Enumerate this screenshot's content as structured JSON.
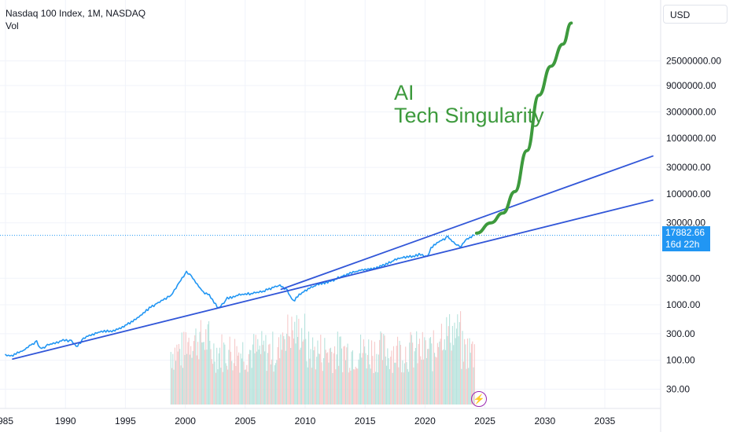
{
  "header": {
    "symbol_line": "Nasdaq 100 Index, 1M, NASDAQ",
    "indicator": "Vol"
  },
  "currency_button": "USD",
  "annotation": {
    "line1": "AI",
    "line2": "Tech Singularity"
  },
  "last_price": {
    "value": "17882.66",
    "countdown": "16d 22h"
  },
  "colors": {
    "price_line": "#2196f3",
    "trend_line": "#3156d8",
    "projection": "#3d9a3d",
    "vol_up": "#b7e3dd",
    "vol_down": "#f6c9c9",
    "tag": "#2196f3",
    "event_icon": "#9c27b0"
  },
  "chart_data": {
    "type": "line",
    "scale": "log",
    "y_ticks": [
      "25000000.00",
      "9000000.00",
      "3000000.00",
      "1000000.00",
      "300000.00",
      "100000.00",
      "30000.00",
      "3000.00",
      "1000.00",
      "300.00",
      "100.00",
      "30.00"
    ],
    "x_ticks": [
      "985",
      "1990",
      "1995",
      "2000",
      "2005",
      "2010",
      "2015",
      "2020",
      "2025",
      "2030",
      "2035"
    ],
    "xlim": [
      1985,
      2039
    ],
    "grid": true,
    "series": [
      {
        "points": [
          [
            1985.0,
            125
          ],
          [
            1985.5,
            120
          ],
          [
            1986.0,
            135
          ],
          [
            1986.5,
            150
          ],
          [
            1987.0,
            180
          ],
          [
            1987.6,
            220
          ],
          [
            1987.9,
            160
          ],
          [
            1988.5,
            185
          ],
          [
            1989.0,
            200
          ],
          [
            1989.8,
            230
          ],
          [
            1990.5,
            220
          ],
          [
            1990.9,
            175
          ],
          [
            1991.5,
            240
          ],
          [
            1992.0,
            280
          ],
          [
            1993.0,
            330
          ],
          [
            1994.0,
            340
          ],
          [
            1995.0,
            420
          ],
          [
            1996.0,
            580
          ],
          [
            1997.0,
            860
          ],
          [
            1998.0,
            1200
          ],
          [
            1998.8,
            1450
          ],
          [
            1999.5,
            2500
          ],
          [
            2000.1,
            3900
          ],
          [
            2000.5,
            3300
          ],
          [
            2001.0,
            2300
          ],
          [
            2001.5,
            1700
          ],
          [
            2002.0,
            1500
          ],
          [
            2002.8,
            850
          ],
          [
            2003.5,
            1300
          ],
          [
            2004.5,
            1500
          ],
          [
            2005.5,
            1600
          ],
          [
            2006.5,
            1750
          ],
          [
            2007.5,
            2100
          ],
          [
            2007.9,
            2200
          ],
          [
            2008.5,
            1800
          ],
          [
            2009.0,
            1150
          ],
          [
            2009.5,
            1500
          ],
          [
            2010.0,
            1800
          ],
          [
            2011.0,
            2300
          ],
          [
            2012.0,
            2600
          ],
          [
            2013.0,
            3200
          ],
          [
            2014.0,
            3800
          ],
          [
            2015.0,
            4400
          ],
          [
            2016.0,
            4600
          ],
          [
            2017.0,
            5800
          ],
          [
            2018.0,
            7000
          ],
          [
            2019.0,
            7500
          ],
          [
            2019.5,
            8000
          ],
          [
            2020.2,
            7400
          ],
          [
            2020.5,
            10500
          ],
          [
            2021.0,
            13000
          ],
          [
            2021.9,
            16500
          ],
          [
            2022.5,
            12500
          ],
          [
            2022.9,
            11000
          ],
          [
            2023.5,
            15500
          ],
          [
            2024.1,
            17882.66
          ]
        ]
      },
      {
        "name": "",
        "points": [
          [
            1985.6,
            105
          ],
          [
            2039,
            77000
          ]
        ]
      },
      {
        "name": "",
        "points": [
          [
            2008.0,
            1900
          ],
          [
            2039,
            480000
          ]
        ]
      },
      {
        "name": "",
        "points": [
          [
            2024.3,
            19500
          ],
          [
            2025.5,
            30000
          ],
          [
            2026.5,
            45000
          ],
          [
            2027.5,
            110000
          ],
          [
            2028.5,
            600000
          ],
          [
            2029.5,
            6000000
          ],
          [
            2030.5,
            20000000
          ],
          [
            2031.5,
            50000000
          ],
          [
            2032.2,
            120000000
          ]
        ]
      }
    ],
    "volume": {
      "x_start": 1998.8,
      "x_end": 2024.2
    }
  }
}
